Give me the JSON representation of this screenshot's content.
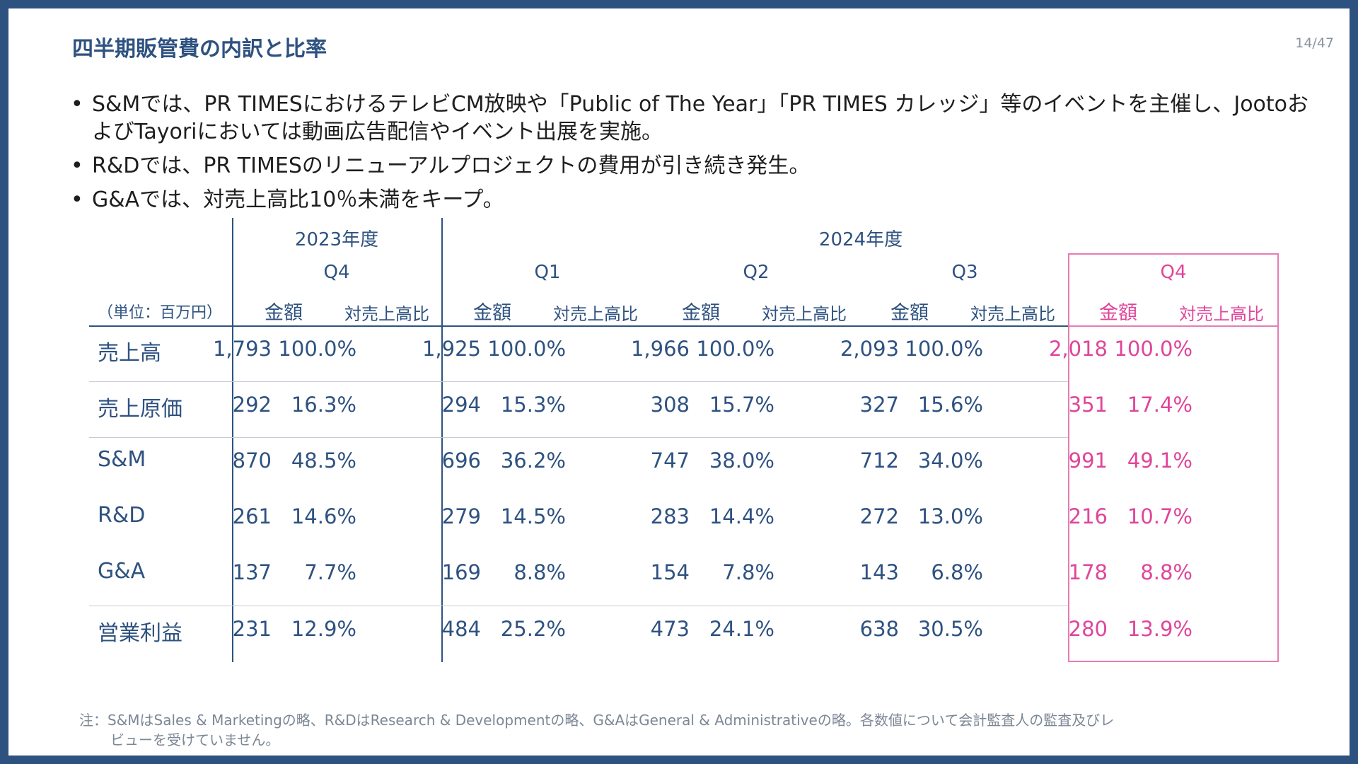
{
  "slide": {
    "title": "四半期販管費の内訳と比率",
    "page": "14/47",
    "bullets": [
      "S&Mでは、PR TIMESにおけるテレビCM放映や「Public of The Year」「PR TIMES カレッジ」等のイベントを主催し、JootoおよびTayoriにおいては動画広告配信やイベント出展を実施。",
      "R&Dでは、PR TIMESのリニューアルプロジェクトの費用が引き続き発生。",
      "G&Aでは、対売上高比10％未満をキープ。"
    ],
    "colors": {
      "accent": "#2e5280",
      "highlight": "#e0459a",
      "border": "#2e5280"
    }
  },
  "table": {
    "unit_label": "（単位：百万円）",
    "year_2023": "2023年度",
    "year_2024": "2024年度",
    "quarters": [
      "Q4",
      "Q1",
      "Q2",
      "Q3",
      "Q4"
    ],
    "amount_label": "金額",
    "ratio_label": "対売上高比",
    "rows": [
      {
        "label": "売上高",
        "cells": [
          "1,793",
          "100.0%",
          "1,925",
          "100.0%",
          "1,966",
          "100.0%",
          "2,093",
          "100.0%",
          "2,018",
          "100.0%"
        ]
      },
      {
        "label": "売上原価",
        "cells": [
          "292",
          "16.3%",
          "294",
          "15.3%",
          "308",
          "15.7%",
          "327",
          "15.6%",
          "351",
          "17.4%"
        ]
      },
      {
        "label": "S&M",
        "cells": [
          "870",
          "48.5%",
          "696",
          "36.2%",
          "747",
          "38.0%",
          "712",
          "34.0%",
          "991",
          "49.1%"
        ]
      },
      {
        "label": "R&D",
        "cells": [
          "261",
          "14.6%",
          "279",
          "14.5%",
          "283",
          "14.4%",
          "272",
          "13.0%",
          "216",
          "10.7%"
        ]
      },
      {
        "label": "G&A",
        "cells": [
          "137",
          "7.7%",
          "169",
          "8.8%",
          "154",
          "7.8%",
          "143",
          "6.8%",
          "178",
          "8.8%"
        ]
      },
      {
        "label": "営業利益",
        "cells": [
          "231",
          "12.9%",
          "484",
          "25.2%",
          "473",
          "24.1%",
          "638",
          "30.5%",
          "280",
          "13.9%"
        ]
      }
    ]
  },
  "note": {
    "line1": "注：S&MはSales & Marketingの略、R&DはResearch & Developmentの略、G&AはGeneral & Administrativeの略。各数値について会計監査人の監査及びレ",
    "line2": "ビューを受けていません。"
  }
}
